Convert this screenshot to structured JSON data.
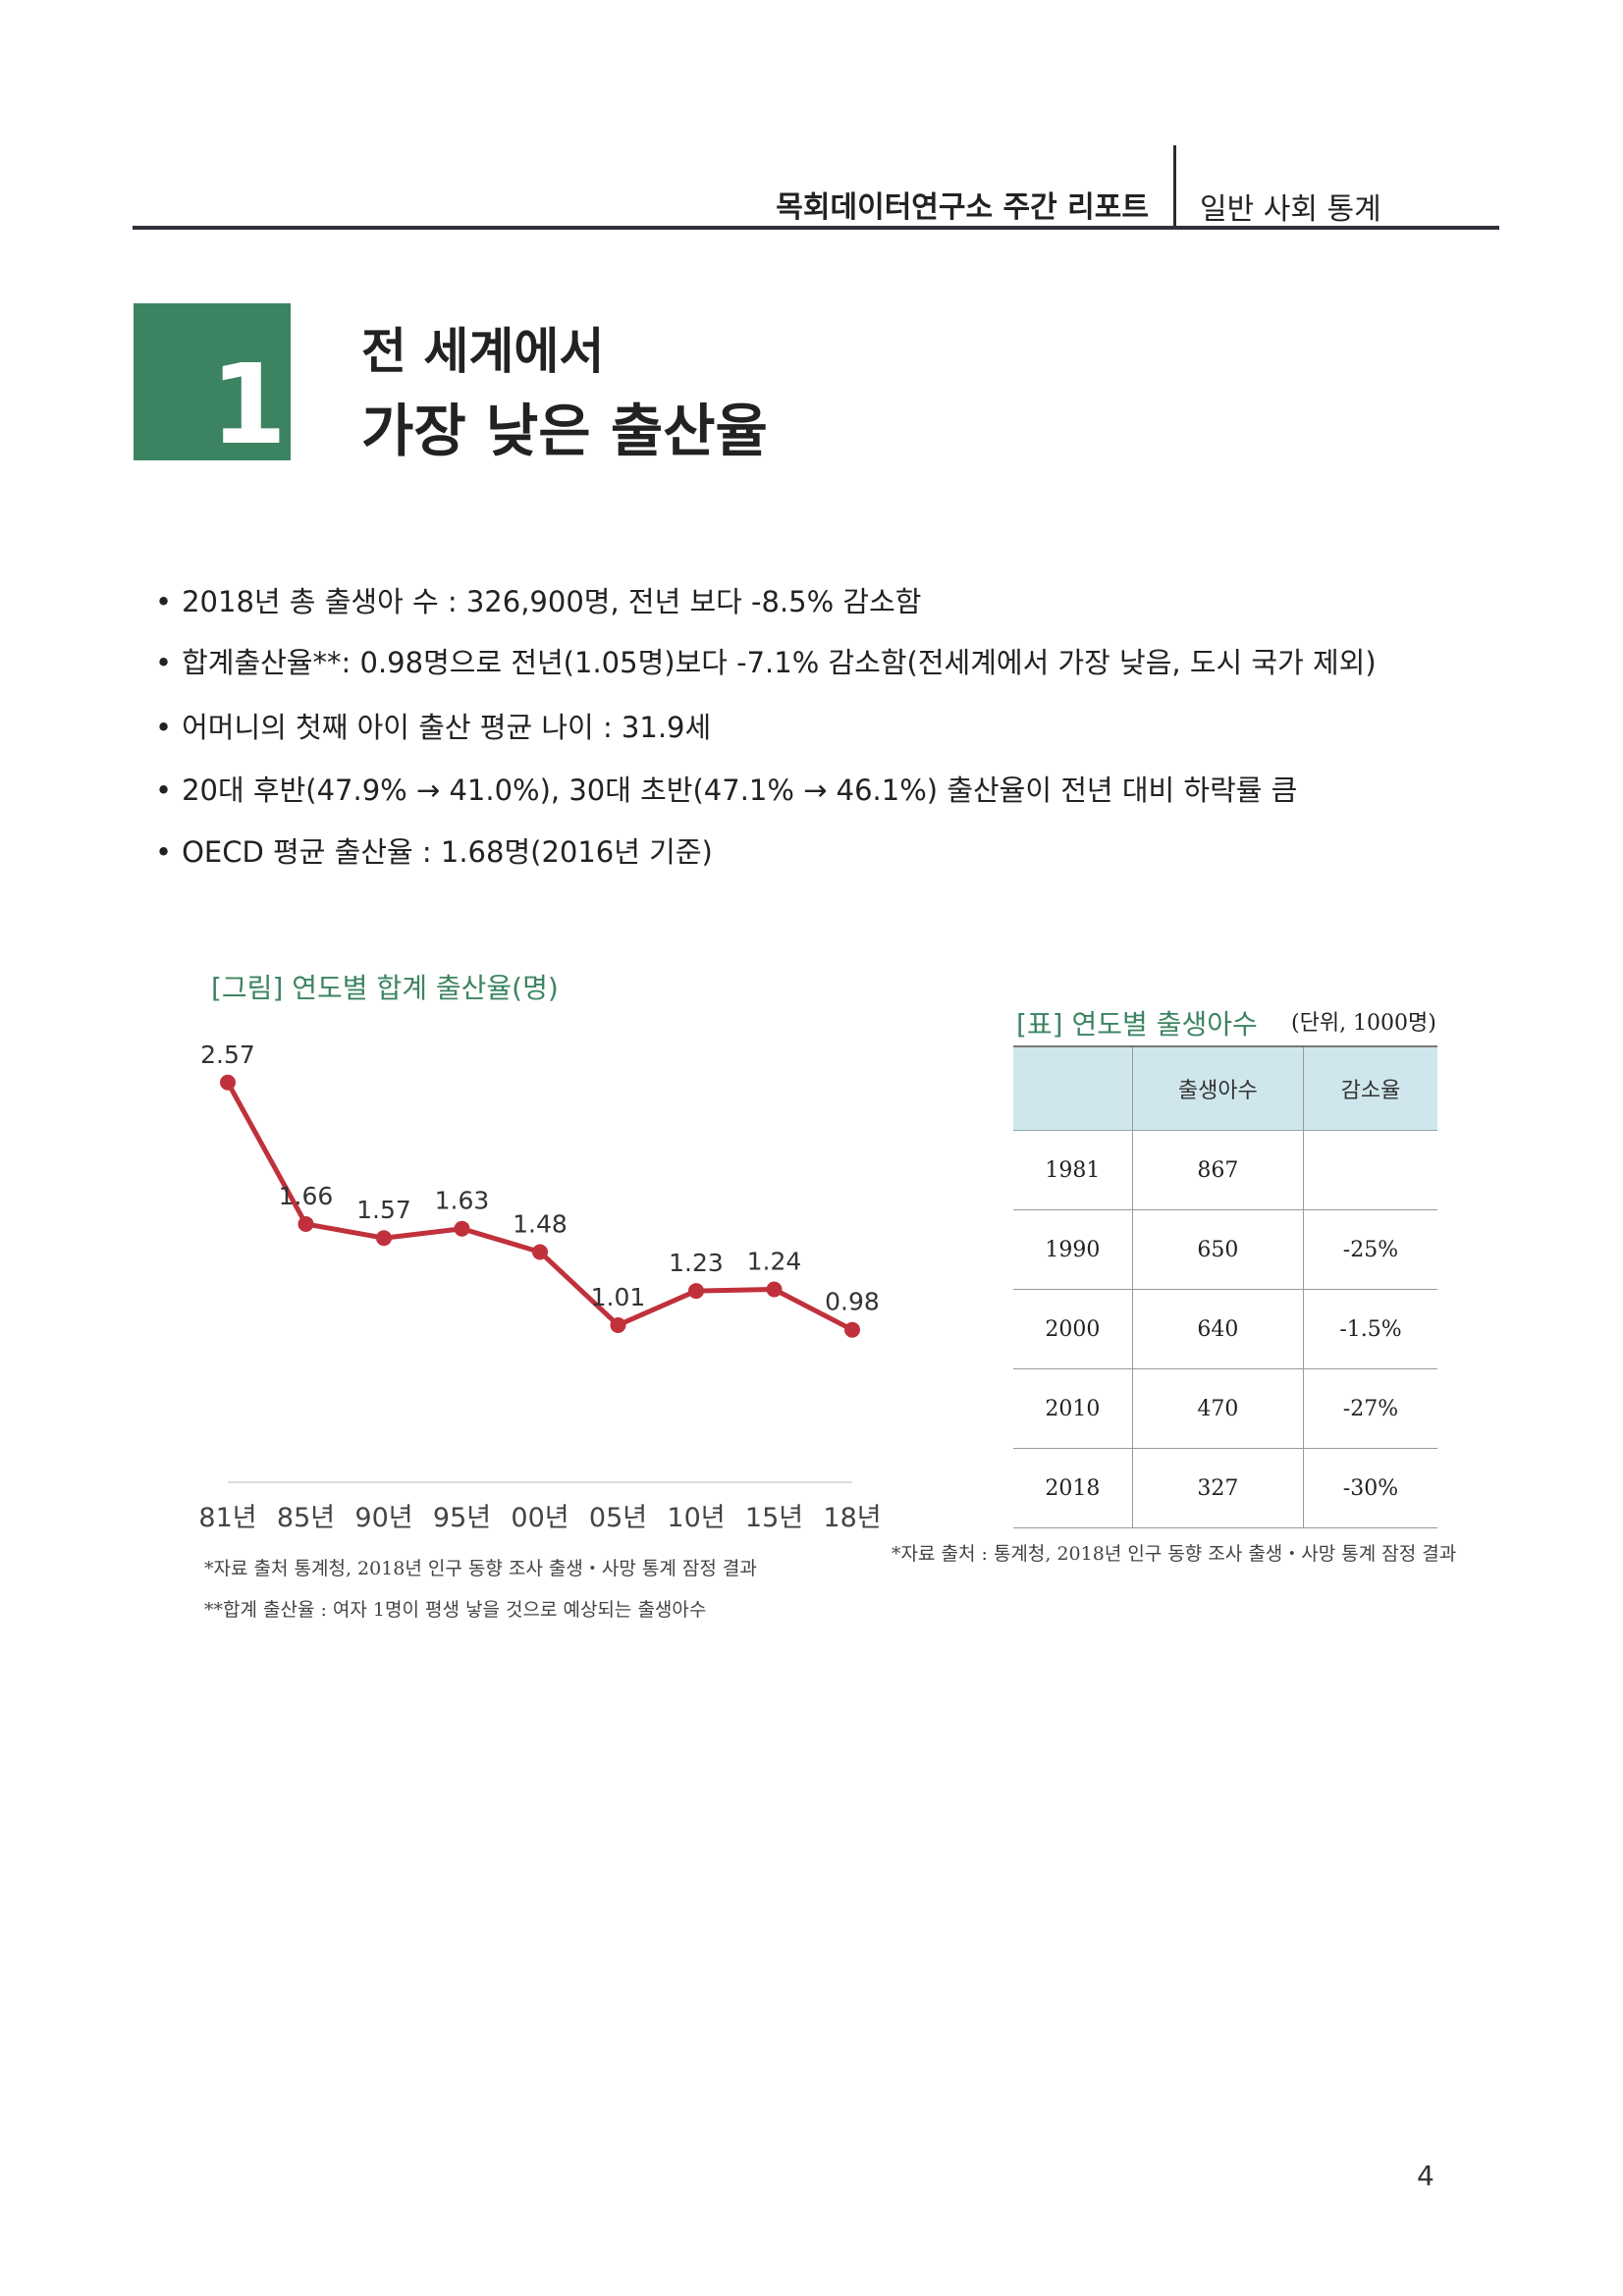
{
  "header": {
    "report_title": "목회데이터연구소 주간 리포트",
    "section_name": "일반 사회 통계"
  },
  "section": {
    "number": "1",
    "title_line1": "전 세계에서",
    "title_line2": "가장 낮은 출산율"
  },
  "bullets": [
    "2018년 총 출생아 수 : 326,900명, 전년 보다 -8.5% 감소함",
    "합계출산율**: 0.98명으로 전년(1.05명)보다 -7.1% 감소함(전세계에서 가장 낮음, 도시 국가 제외)",
    "어머니의 첫째 아이 출산 평균 나이 : 31.9세",
    "20대 후반(47.9% → 41.0%), 30대 초반(47.1% → 46.1%) 출산율이 전년 대비 하락률 큼",
    "OECD 평균 출산율 : 1.68명(2016년 기준)"
  ],
  "bullet_marker": "•",
  "chart_caption": "[그림] 연도별 합계 출산율(명)",
  "chart_data": {
    "type": "line",
    "title": "[그림] 연도별 합계 출산율(명)",
    "categories": [
      "81년",
      "85년",
      "90년",
      "95년",
      "00년",
      "05년",
      "10년",
      "15년",
      "18년"
    ],
    "values": [
      2.57,
      1.66,
      1.57,
      1.63,
      1.48,
      1.01,
      1.23,
      1.24,
      0.98
    ],
    "value_labels": [
      "2.57",
      "1.66",
      "1.57",
      "1.63",
      "1.48",
      "1.01",
      "1.23",
      "1.24",
      "0.98"
    ],
    "ylim": [
      0,
      2.6
    ],
    "grid": false,
    "color": "#c0313b"
  },
  "chart_notes": [
    "*자료 출처 통계청, 2018년 인구 동향 조사 출생・사망 통계 잠정 결과",
    "**합계 출산율 : 여자 1명이 평생 낳을 것으로 예상되는 출생아수"
  ],
  "table": {
    "caption": "[표] 연도별 출생아수",
    "unit": "(단위, 1000명)",
    "headers": [
      "",
      "출생아수",
      "감소율"
    ],
    "rows": [
      [
        "1981",
        "867",
        ""
      ],
      [
        "1990",
        "650",
        "-25%"
      ],
      [
        "2000",
        "640",
        "-1.5%"
      ],
      [
        "2010",
        "470",
        "-27%"
      ],
      [
        "2018",
        "327",
        "-30%"
      ]
    ],
    "note": "*자료 출처 : 통계청, 2018년 인구 동향 조사 출생・사망 통계 잠정 결과",
    "header_color": "#cfe6ec"
  },
  "colors": {
    "accent_green": "#3c8461",
    "line_red": "#c0313b"
  },
  "page_number": "4"
}
